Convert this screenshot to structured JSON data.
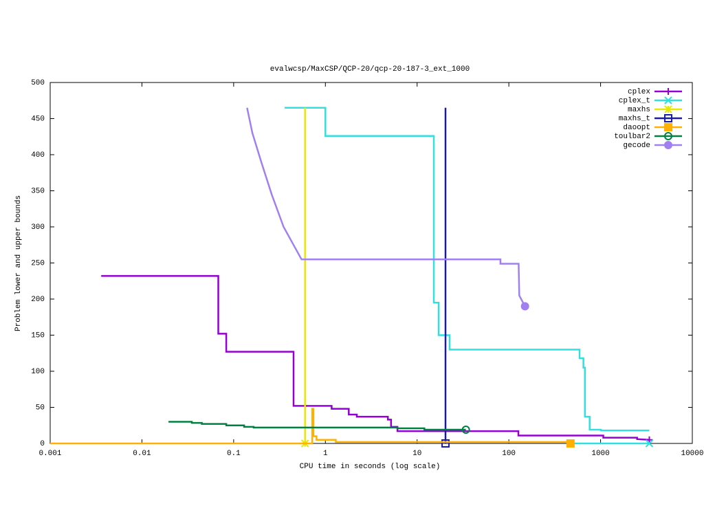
{
  "chart_data": {
    "type": "line",
    "title": "evalwcsp/MaxCSP/QCP-20/qcp-20-187-3_ext_1000",
    "x_label": "CPU time in seconds (log scale)",
    "y_label": "Problem lower and upper bounds",
    "x_log": true,
    "xlim": [
      0.001,
      10000
    ],
    "xticks": [
      0.001,
      0.01,
      0.1,
      1,
      10,
      100,
      1000,
      10000
    ],
    "ylim": [
      0,
      500
    ],
    "yticks": [
      0,
      50,
      100,
      150,
      200,
      250,
      300,
      350,
      400,
      450,
      500
    ],
    "grid": false,
    "legend": "top-right",
    "series": [
      {
        "name": "cplex",
        "color": "#9400d3",
        "marker": "plus",
        "x": [
          0.0036,
          0.068,
          0.068,
          0.083,
          0.083,
          0.45,
          0.45,
          1.17,
          1.17,
          1.8,
          1.8,
          2.2,
          2.2,
          4.8,
          4.8,
          5.2,
          5.2,
          6.1,
          6.1,
          127,
          127,
          1070,
          1070,
          2500,
          2500,
          3400
        ],
        "values": [
          232,
          232,
          152,
          152,
          127,
          127,
          52,
          52,
          48,
          48,
          40,
          40,
          37,
          37,
          33,
          33,
          23,
          23,
          17,
          17,
          11,
          11,
          8,
          8,
          6,
          5
        ]
      },
      {
        "name": "cplex_t",
        "color": "#30e0e0",
        "marker": "x",
        "x": [
          0.36,
          1.0,
          1.0,
          15.2,
          15.2,
          17.2,
          17.2,
          22.6,
          22.6,
          590,
          590,
          650,
          650,
          675,
          675,
          760,
          760,
          1010,
          1010,
          3400,
          null,
          470,
          3400
        ],
        "values": [
          465,
          465,
          426,
          426,
          195,
          195,
          150,
          150,
          130,
          130,
          118,
          118,
          105,
          105,
          37,
          37,
          19,
          19,
          18,
          18,
          null,
          0,
          0
        ]
      },
      {
        "name": "maxhs",
        "color": "#e8e800",
        "marker": "star",
        "x": [
          0.6,
          0.6
        ],
        "values": [
          465,
          0
        ]
      },
      {
        "name": "maxhs_t",
        "color": "#1a1aa8",
        "marker": "square-open",
        "x": [
          20.4,
          20.4
        ],
        "values": [
          465,
          0
        ]
      },
      {
        "name": "daoopt",
        "color": "#ffb000",
        "marker": "square",
        "x": [
          0.001,
          0.72,
          0.72,
          0.74,
          0.74,
          0.8,
          0.8,
          1.3,
          1.3,
          470,
          470
        ],
        "values": [
          0,
          0,
          48,
          48,
          10,
          10,
          5,
          5,
          2,
          2,
          0
        ]
      },
      {
        "name": "toulbar2",
        "color": "#008040",
        "marker": "circle-open",
        "x": [
          0.0195,
          0.035,
          0.035,
          0.045,
          0.045,
          0.083,
          0.083,
          0.13,
          0.13,
          0.165,
          0.165,
          6.1,
          6.1,
          12,
          12,
          34
        ],
        "values": [
          30,
          30,
          28.5,
          28.5,
          27,
          27,
          25,
          25,
          23,
          23,
          22,
          22,
          21,
          21,
          19,
          19
        ]
      },
      {
        "name": "gecode",
        "color": "#a080f0",
        "marker": "circle",
        "x": [
          0.14,
          0.16,
          0.2,
          0.26,
          0.35,
          0.45,
          0.55,
          81,
          81,
          128,
          130,
          150
        ],
        "values": [
          465,
          430,
          390,
          345,
          300,
          275,
          255,
          255,
          249,
          249,
          205,
          190
        ]
      }
    ]
  }
}
